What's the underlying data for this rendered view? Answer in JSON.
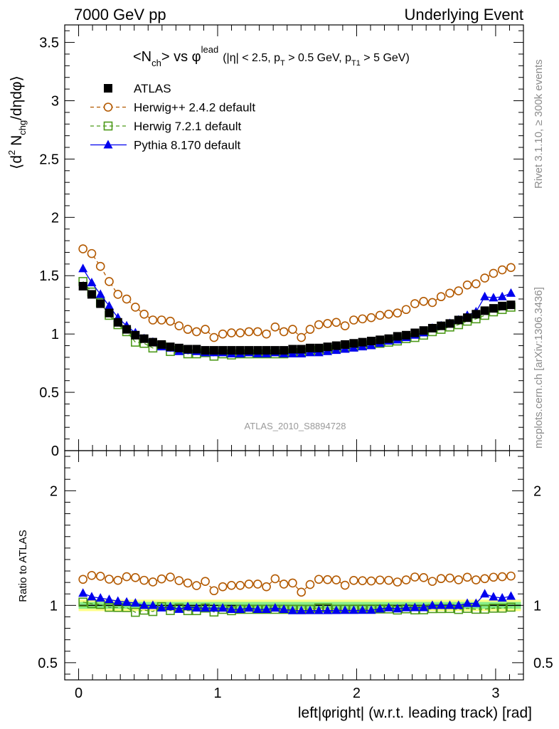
{
  "header": {
    "left": "7000 GeV pp",
    "right": "Underlying Event"
  },
  "side_labels": {
    "rivet": "Rivet 3.1.10, ≥ 300k events",
    "mcplots": "mcplots.cern.ch [arXiv:1306.3436]"
  },
  "analysis_label": "ATLAS_2010_S8894728",
  "title": {
    "main": "<N",
    "sub_ch": "ch",
    "vs": "> vs φ",
    "sup_lead": "lead",
    "cuts": "(|η| < 2.5, p",
    "cut_T": "T",
    "cut_mid": " > 0.5 GeV, p",
    "cut_T1": "T1",
    "cut_end": " > 5 GeV)"
  },
  "ylabel_main": {
    "pre": "⟨d",
    "sup2": "2",
    "mid": " N",
    "sub": "chg",
    "post": "/dηdφ⟩"
  },
  "ylabel_ratio": "Ratio to ATLAS",
  "xlabel": "left|φright| (w.r.t. leading track) [rad]",
  "colors": {
    "atlas": "#000000",
    "herwig_old": "#b35900",
    "herwig_new": "#4d9a1a",
    "pythia": "#0000ee",
    "band_outer": "#ffff88",
    "band_inner": "#88ee88"
  },
  "legend": [
    {
      "key": "atlas",
      "label": "ATLAS"
    },
    {
      "key": "herwig_old",
      "label": "Herwig++ 2.4.2 default"
    },
    {
      "key": "herwig_new",
      "label": "Herwig 7.2.1 default"
    },
    {
      "key": "pythia",
      "label": "Pythia 8.170 default"
    }
  ],
  "chart_data": {
    "type": "scatter",
    "x": [
      0.0314,
      0.0942,
      0.157,
      0.2199,
      0.2827,
      0.3456,
      0.4084,
      0.4712,
      0.5341,
      0.5969,
      0.6597,
      0.7226,
      0.7854,
      0.8482,
      0.9111,
      0.9739,
      1.0367,
      1.0996,
      1.1624,
      1.2252,
      1.2881,
      1.3509,
      1.4137,
      1.4765,
      1.5394,
      1.6022,
      1.665,
      1.7279,
      1.7907,
      1.8535,
      1.9164,
      1.9792,
      2.042,
      2.1049,
      2.1677,
      2.2305,
      2.2934,
      2.3562,
      2.419,
      2.4819,
      2.5447,
      2.6075,
      2.6704,
      2.7332,
      2.796,
      2.8588,
      2.9217,
      2.9845,
      3.0473,
      3.1102
    ],
    "xlim": [
      -0.1,
      3.2
    ],
    "main_ylim": [
      0,
      3.65
    ],
    "ratio_ylim": [
      0.35,
      2.35
    ],
    "main_yticks": [
      0,
      0.5,
      1,
      1.5,
      2,
      2.5,
      3,
      3.5
    ],
    "ratio_yticks": [
      0.5,
      1,
      2
    ],
    "xticks": [
      0,
      1,
      2,
      3
    ],
    "series": [
      {
        "key": "atlas",
        "name": "ATLAS",
        "values": [
          1.41,
          1.34,
          1.26,
          1.18,
          1.1,
          1.04,
          0.99,
          0.96,
          0.93,
          0.91,
          0.89,
          0.88,
          0.87,
          0.87,
          0.86,
          0.86,
          0.86,
          0.86,
          0.86,
          0.86,
          0.86,
          0.86,
          0.86,
          0.86,
          0.87,
          0.87,
          0.88,
          0.88,
          0.89,
          0.9,
          0.91,
          0.92,
          0.93,
          0.94,
          0.95,
          0.96,
          0.98,
          0.99,
          1.01,
          1.03,
          1.05,
          1.07,
          1.09,
          1.12,
          1.14,
          1.17,
          1.2,
          1.22,
          1.24,
          1.25
        ]
      },
      {
        "key": "herwig_old",
        "name": "Herwig++ 2.4.2 default",
        "values": [
          1.73,
          1.69,
          1.58,
          1.45,
          1.34,
          1.3,
          1.23,
          1.17,
          1.12,
          1.12,
          1.11,
          1.07,
          1.04,
          1.02,
          1.04,
          0.97,
          1.0,
          1.01,
          1.01,
          1.02,
          1.02,
          1.0,
          1.06,
          1.02,
          1.04,
          0.97,
          1.04,
          1.08,
          1.09,
          1.1,
          1.07,
          1.12,
          1.13,
          1.14,
          1.16,
          1.17,
          1.18,
          1.21,
          1.26,
          1.28,
          1.27,
          1.32,
          1.35,
          1.37,
          1.42,
          1.43,
          1.48,
          1.52,
          1.55,
          1.57
        ]
      },
      {
        "key": "herwig_new",
        "name": "Herwig 7.2.1 default",
        "values": [
          1.45,
          1.36,
          1.27,
          1.16,
          1.08,
          1.02,
          0.93,
          0.92,
          0.88,
          0.9,
          0.85,
          0.86,
          0.83,
          0.83,
          0.84,
          0.81,
          0.83,
          0.82,
          0.83,
          0.83,
          0.83,
          0.83,
          0.83,
          0.83,
          0.84,
          0.84,
          0.85,
          0.86,
          0.87,
          0.87,
          0.88,
          0.89,
          0.9,
          0.91,
          0.92,
          0.93,
          0.94,
          0.96,
          0.97,
          0.99,
          1.02,
          1.04,
          1.06,
          1.08,
          1.11,
          1.13,
          1.16,
          1.19,
          1.21,
          1.23
        ]
      },
      {
        "key": "pythia",
        "name": "Pythia 8.170 default",
        "values": [
          1.56,
          1.44,
          1.34,
          1.24,
          1.14,
          1.07,
          1.01,
          0.96,
          0.93,
          0.89,
          0.88,
          0.85,
          0.86,
          0.85,
          0.84,
          0.84,
          0.84,
          0.83,
          0.83,
          0.84,
          0.83,
          0.83,
          0.84,
          0.83,
          0.83,
          0.83,
          0.84,
          0.84,
          0.85,
          0.86,
          0.87,
          0.88,
          0.89,
          0.9,
          0.92,
          0.94,
          0.95,
          0.97,
          0.99,
          1.01,
          1.05,
          1.07,
          1.09,
          1.12,
          1.16,
          1.19,
          1.32,
          1.31,
          1.32,
          1.35
        ]
      }
    ],
    "ratio_band": {
      "outer": [
        0.95,
        1.05
      ],
      "inner": [
        0.97,
        1.03
      ]
    }
  }
}
